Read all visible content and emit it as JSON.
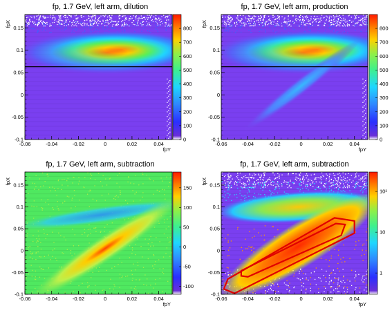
{
  "chart_data": [
    {
      "type": "heatmap",
      "title": "fp, 1.7 GeV, left arm, dilution",
      "xlabel": "fpY",
      "ylabel": "fpX",
      "xlim": [
        -0.06,
        0.05
      ],
      "ylim": [
        -0.1,
        0.18
      ],
      "x_ticks": [
        "-0.06",
        "-0.04",
        "-0.02",
        "0",
        "0.02",
        "0.04"
      ],
      "y_ticks": [
        "-0.1",
        "-0.05",
        "0",
        "0.05",
        "0.1",
        "0.15"
      ],
      "z_scale": "linear",
      "z_range": [
        0,
        900
      ],
      "palette_ticks": [
        "0",
        "100",
        "200",
        "300",
        "400",
        "500",
        "600",
        "700",
        "800"
      ],
      "horizontal_line_y": 0.063,
      "features": "bright band near fpX≈0.10 peaking near fpY≈0.015; uniform background elsewhere"
    },
    {
      "type": "heatmap",
      "title": "fp, 1.7 GeV, left arm, production",
      "xlabel": "fpY",
      "ylabel": "fpX",
      "xlim": [
        -0.06,
        0.05
      ],
      "ylim": [
        -0.1,
        0.18
      ],
      "x_ticks": [
        "-0.06",
        "-0.04",
        "-0.02",
        "0",
        "0.02",
        "0.04"
      ],
      "y_ticks": [
        "-0.1",
        "-0.05",
        "0",
        "0.05",
        "0.1",
        "0.15"
      ],
      "z_scale": "linear",
      "z_range": [
        0,
        900
      ],
      "palette_ticks": [
        "0",
        "100",
        "200",
        "300",
        "400",
        "500",
        "600",
        "700",
        "800"
      ],
      "horizontal_line_y": 0.063,
      "features": "bright band near fpX≈0.10 plus diagonal band from (-0.04,-0.02) to (0.04,0.06)"
    },
    {
      "type": "heatmap",
      "title": "fp, 1.7 GeV, left arm, subtraction",
      "xlabel": "fpY",
      "ylabel": "fpX",
      "xlim": [
        -0.06,
        0.05
      ],
      "ylim": [
        -0.1,
        0.18
      ],
      "x_ticks": [
        "-0.06",
        "-0.04",
        "-0.02",
        "0",
        "0.02",
        "0.04"
      ],
      "y_ticks": [
        "-0.1",
        "-0.05",
        "0",
        "0.05",
        "0.1",
        "0.15"
      ],
      "z_scale": "linear",
      "z_range": [
        -120,
        190
      ],
      "palette_ticks": [
        "-100",
        "-50",
        "0",
        "50",
        "100",
        "150"
      ],
      "features": "diagonal positive band; negative band near fpX≈0.08"
    },
    {
      "type": "heatmap",
      "title": "fp, 1.7 GeV, left arm, subtraction",
      "xlabel": "fpY",
      "ylabel": "fpX",
      "xlim": [
        -0.06,
        0.05
      ],
      "ylim": [
        -0.1,
        0.18
      ],
      "x_ticks": [
        "-0.06",
        "-0.04",
        "-0.02",
        "0",
        "0.02",
        "0.04"
      ],
      "y_ticks": [
        "-0.1",
        "-0.05",
        "0",
        "0.05",
        "0.1",
        "0.15"
      ],
      "z_scale": "log",
      "z_range": [
        0.3,
        300
      ],
      "palette_ticks": [
        "1",
        "10",
        "10²"
      ],
      "outer_cut": [
        [
          -0.058,
          -0.088
        ],
        [
          -0.055,
          -0.065
        ],
        [
          0.025,
          0.075
        ],
        [
          0.04,
          0.068
        ],
        [
          0.04,
          0.04
        ],
        [
          -0.05,
          -0.098
        ]
      ],
      "inner_cut": [
        [
          -0.045,
          -0.058
        ],
        [
          -0.045,
          -0.046
        ],
        [
          0.026,
          0.062
        ],
        [
          0.033,
          0.06
        ],
        [
          0.03,
          0.035
        ],
        [
          -0.04,
          -0.06
        ]
      ],
      "features": "log-scale view of the diagonal band with two red polygon cuts"
    }
  ],
  "colors": {
    "background": "#7a3ff0",
    "cut_line": "#e00000",
    "horizontal_line": "#000000"
  }
}
